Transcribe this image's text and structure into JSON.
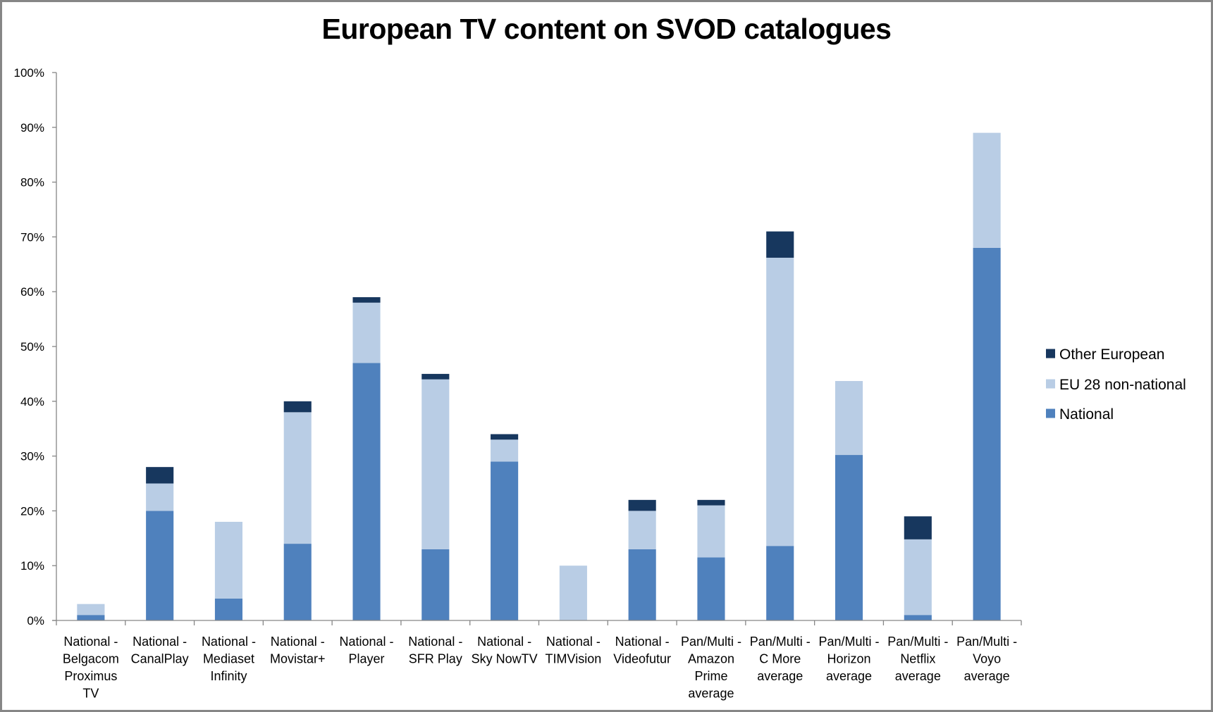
{
  "chart_data": {
    "type": "bar",
    "stacked": true,
    "title": "European TV content on SVOD catalogues",
    "xlabel": "",
    "ylabel": "",
    "ylim": [
      0,
      100
    ],
    "y_ticks": [
      "0%",
      "10%",
      "20%",
      "30%",
      "40%",
      "50%",
      "60%",
      "70%",
      "80%",
      "90%",
      "100%"
    ],
    "grid": false,
    "legend_position": "right",
    "categories": [
      [
        "National -",
        "Belgacom",
        "Proximus",
        "TV"
      ],
      [
        "National -",
        "CanalPlay"
      ],
      [
        "National -",
        "Mediaset",
        "Infinity"
      ],
      [
        "National -",
        "Movistar+"
      ],
      [
        "National -",
        "Player"
      ],
      [
        "National -",
        "SFR Play"
      ],
      [
        "National -",
        "Sky NowTV"
      ],
      [
        "National -",
        "TIMVision"
      ],
      [
        "National -",
        "Videofutur"
      ],
      [
        "Pan/Multi -",
        "Amazon",
        "Prime",
        "average"
      ],
      [
        "Pan/Multi -",
        "C More",
        "average"
      ],
      [
        "Pan/Multi -",
        "Horizon",
        "average"
      ],
      [
        "Pan/Multi -",
        "Netflix",
        "average"
      ],
      [
        "Pan/Multi -",
        "Voyo",
        "average"
      ]
    ],
    "series": [
      {
        "name": "National",
        "color": "#4f81bd",
        "values": [
          1,
          20,
          4,
          14,
          47,
          13,
          29,
          0,
          13,
          11.5,
          13.6,
          30.2,
          1,
          68
        ]
      },
      {
        "name": "EU 28 non-national",
        "color": "#b9cde5",
        "values": [
          2,
          5,
          14,
          24,
          11,
          31,
          4,
          10,
          7,
          9.5,
          52.6,
          13.5,
          13.8,
          21
        ]
      },
      {
        "name": "Other European",
        "color": "#17375e",
        "values": [
          0,
          3,
          0,
          2,
          1,
          1,
          1,
          0,
          2,
          1,
          4.8,
          0,
          4.2,
          0
        ]
      }
    ],
    "legend_order": [
      "Other European",
      "EU 28 non-national",
      "National"
    ]
  }
}
